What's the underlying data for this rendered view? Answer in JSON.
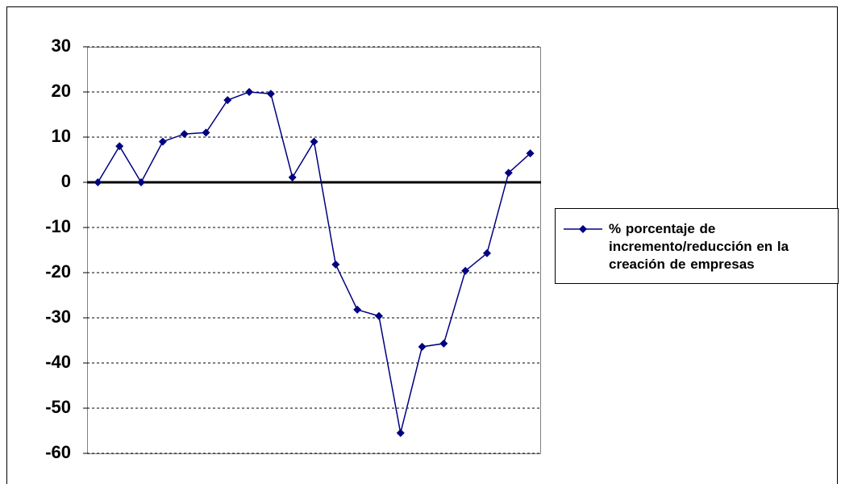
{
  "chart_data": {
    "type": "line",
    "categories": [
      null,
      null,
      null,
      null,
      null,
      null,
      null,
      null,
      null,
      null,
      null,
      null,
      null,
      null,
      null,
      null,
      null,
      null,
      null,
      null,
      null
    ],
    "series": [
      {
        "name": "% porcentaje de incremento/reducción en la creación de empresas",
        "color": "#000080",
        "values": [
          0,
          8,
          0,
          9,
          10.7,
          11,
          18.2,
          20,
          19.6,
          1.1,
          9,
          -18.2,
          -28.2,
          -29.6,
          -55.5,
          -36.4,
          -35.7,
          -19.6,
          -15.7,
          2.1,
          6.4
        ]
      }
    ],
    "ylim": [
      -60,
      30
    ],
    "yticks": [
      -60,
      -50,
      -40,
      -30,
      -20,
      -10,
      0,
      10,
      20,
      30
    ],
    "grid": true,
    "legend": "right"
  }
}
